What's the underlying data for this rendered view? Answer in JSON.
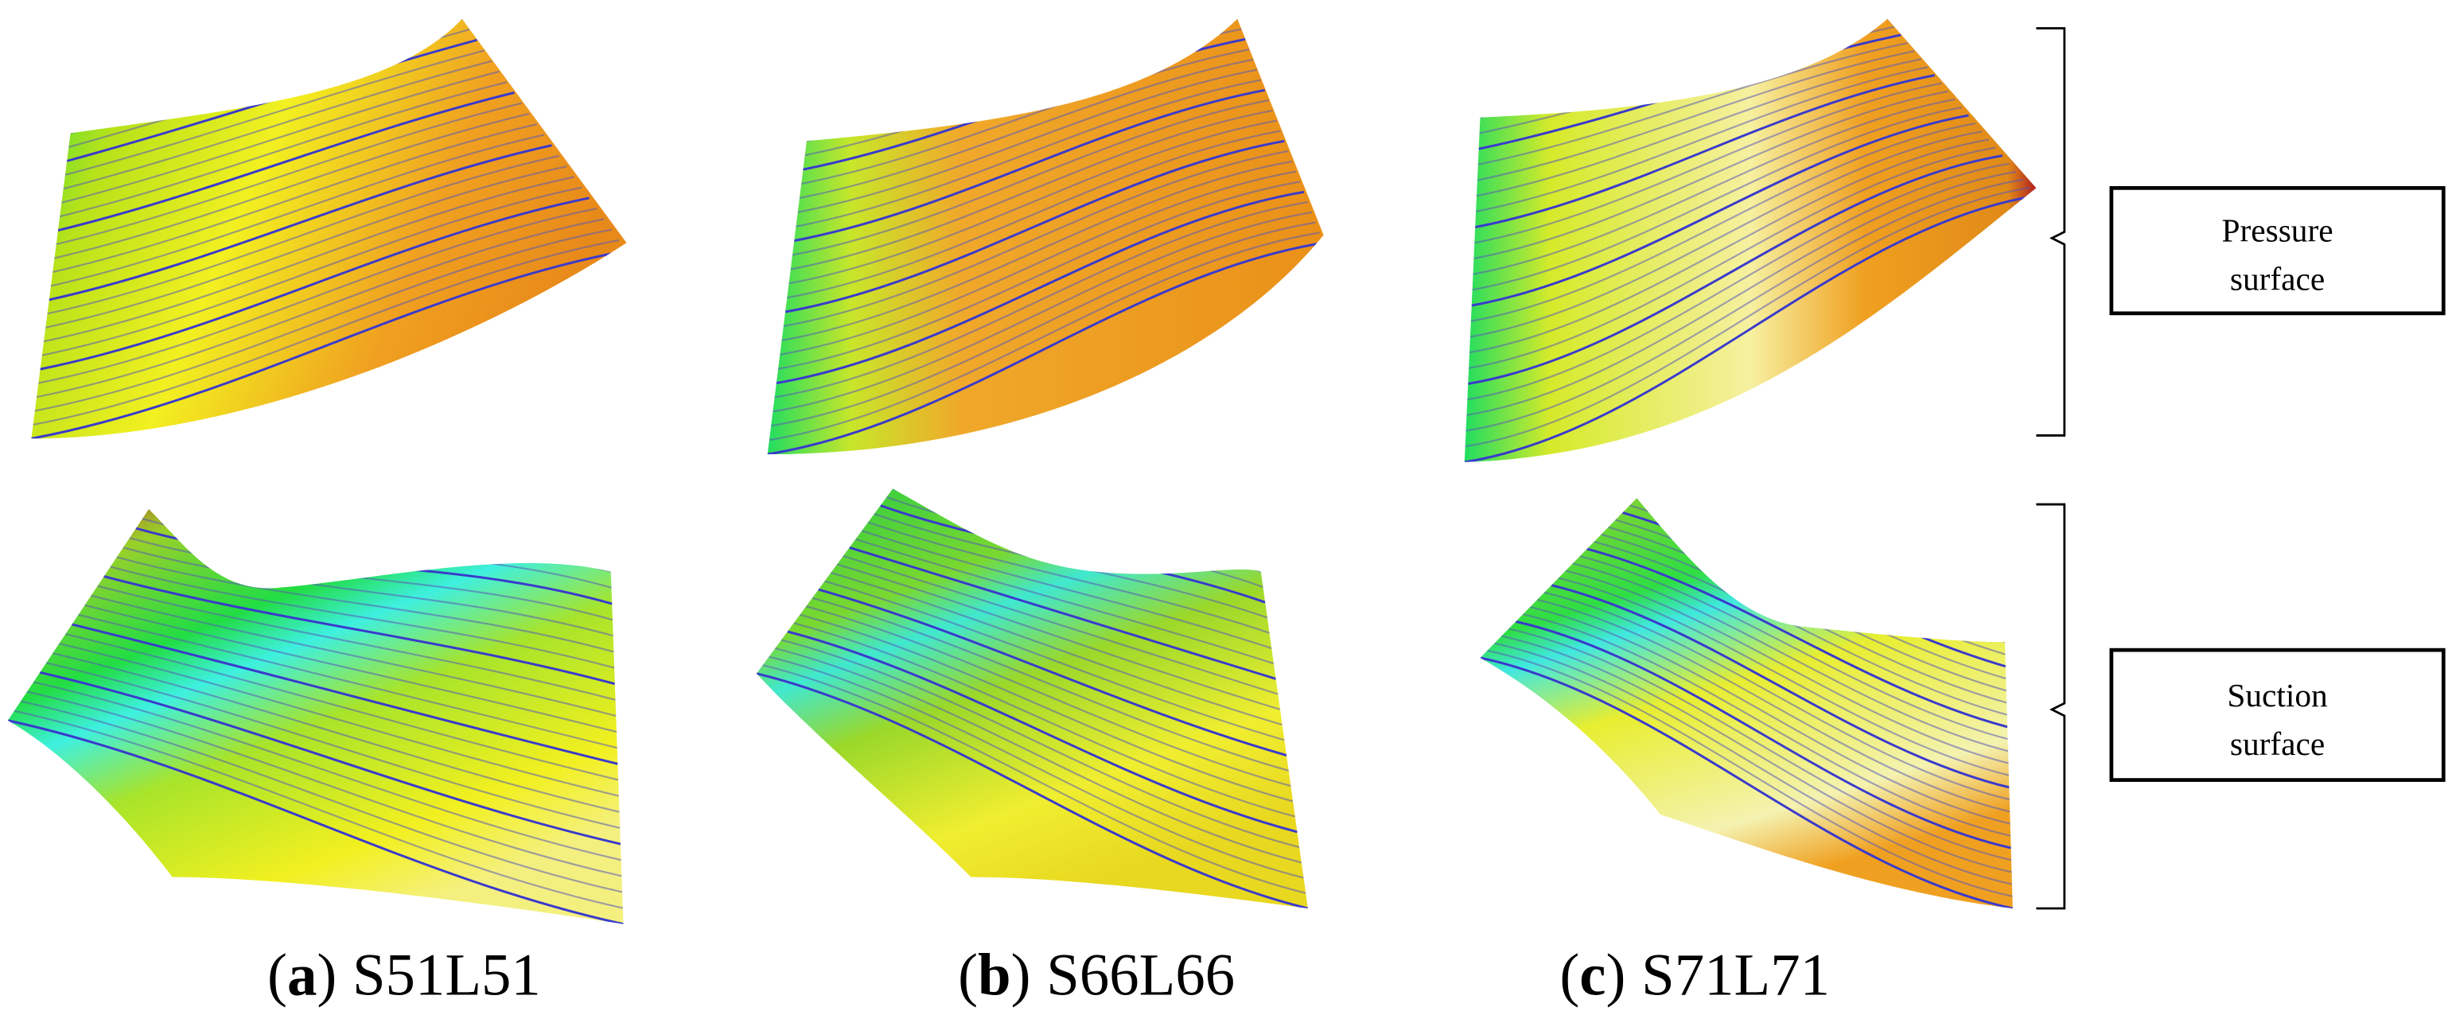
{
  "panels": [
    {
      "pre": "(",
      "letter": "a",
      "post": ")",
      "name": "S51L51"
    },
    {
      "pre": "(",
      "letter": "b",
      "post": ")",
      "name": "S66L66"
    },
    {
      "pre": "(",
      "letter": "c",
      "post": ")",
      "name": "S71L71"
    }
  ],
  "surfaces": [
    {
      "lines": [
        "Pressure",
        "surface"
      ]
    },
    {
      "lines": [
        "Suction",
        "surface"
      ]
    }
  ]
}
